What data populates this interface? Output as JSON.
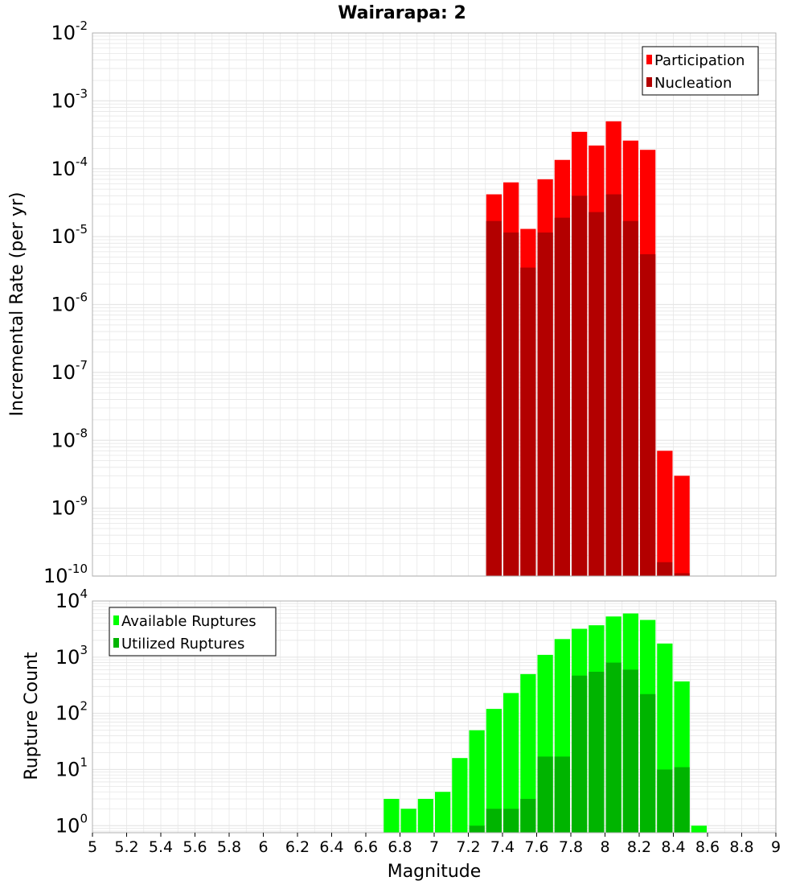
{
  "title": "Wairarapa: 2",
  "xlabel": "Magnitude",
  "colors": {
    "participation": "#ff0000",
    "nucleation": "#b30000",
    "available": "#00ff00",
    "utilized": "#00b400",
    "grid": "#e6e6e6",
    "frame": "#b0b0b0"
  },
  "chart_data": [
    {
      "type": "bar",
      "scale": "log",
      "ylabel": "Incremental Rate (per yr)",
      "ylim": [
        1e-10,
        0.01
      ],
      "xlim": [
        5,
        9
      ],
      "bin_width": 0.1,
      "y_ticks": [
        {
          "base": "10",
          "exp": "-2"
        },
        {
          "base": "10",
          "exp": "-3"
        },
        {
          "base": "10",
          "exp": "-4"
        },
        {
          "base": "10",
          "exp": "-5"
        },
        {
          "base": "10",
          "exp": "-6"
        },
        {
          "base": "10",
          "exp": "-7"
        },
        {
          "base": "10",
          "exp": "-8"
        },
        {
          "base": "10",
          "exp": "-9"
        },
        {
          "base": "10",
          "exp": "-10"
        }
      ],
      "legend": [
        "Participation",
        "Nucleation"
      ],
      "legend_position": "top-right",
      "x": [
        7.35,
        7.45,
        7.55,
        7.65,
        7.75,
        7.85,
        7.95,
        8.05,
        8.15,
        8.25,
        8.35,
        8.45
      ],
      "series": [
        {
          "name": "Participation",
          "values": [
            4.2e-05,
            6.3e-05,
            1.3e-05,
            7e-05,
            0.000135,
            0.00035,
            0.00022,
            0.0005,
            0.00026,
            0.00019,
            7e-09,
            3e-09
          ]
        },
        {
          "name": "Nucleation",
          "values": [
            1.7e-05,
            1.15e-05,
            3.5e-06,
            1.15e-05,
            1.9e-05,
            4e-05,
            2.3e-05,
            4.2e-05,
            1.7e-05,
            5.5e-06,
            1.6e-10,
            1.1e-10
          ]
        }
      ]
    },
    {
      "type": "bar",
      "scale": "log",
      "ylabel": "Rupture Count",
      "ylim": [
        0.75,
        10000
      ],
      "xlim": [
        5,
        9
      ],
      "bin_width": 0.1,
      "y_ticks": [
        {
          "base": "10",
          "exp": "4"
        },
        {
          "base": "10",
          "exp": "3"
        },
        {
          "base": "10",
          "exp": "2"
        },
        {
          "base": "10",
          "exp": "1"
        },
        {
          "base": "10",
          "exp": "0"
        }
      ],
      "legend": [
        "Available Ruptures",
        "Utilized Ruptures"
      ],
      "legend_position": "top-left",
      "x": [
        6.75,
        6.85,
        6.95,
        7.05,
        7.15,
        7.25,
        7.35,
        7.45,
        7.55,
        7.65,
        7.75,
        7.85,
        7.95,
        8.05,
        8.15,
        8.25,
        8.35,
        8.45,
        8.55
      ],
      "series": [
        {
          "name": "Available Ruptures",
          "values": [
            3,
            2,
            3,
            4,
            16,
            50,
            120,
            230,
            500,
            1100,
            2100,
            3200,
            3700,
            5300,
            6000,
            4600,
            1750,
            370,
            1
          ]
        },
        {
          "name": "Utilized Ruptures",
          "values": [
            0,
            0,
            0,
            0,
            0,
            1,
            2,
            2,
            3,
            17,
            17,
            470,
            550,
            800,
            600,
            220,
            10,
            11,
            0
          ]
        }
      ]
    }
  ],
  "x_ticks": [
    "5",
    "5.2",
    "5.4",
    "5.6",
    "5.8",
    "6",
    "6.2",
    "6.4",
    "6.6",
    "6.8",
    "7",
    "7.2",
    "7.4",
    "7.6",
    "7.8",
    "8",
    "8.2",
    "8.4",
    "8.6",
    "8.8",
    "9"
  ]
}
